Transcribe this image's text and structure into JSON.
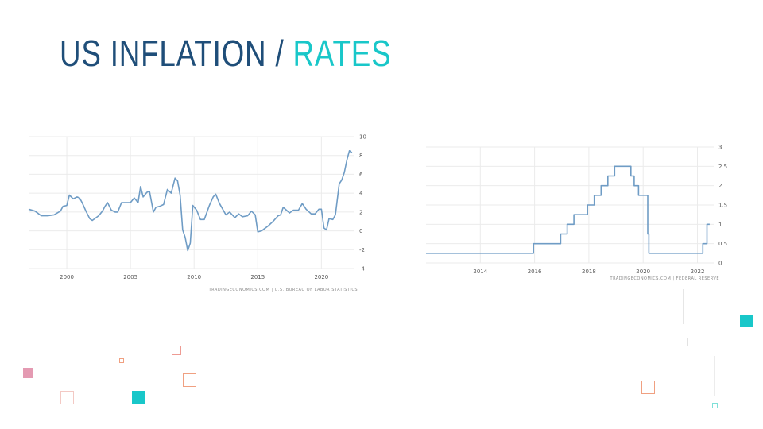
{
  "slide": {
    "title_part1": "US INFLATION",
    "title_sep": "/",
    "title_part2": "RATES"
  },
  "colors": {
    "title_dark": "#1f4e79",
    "title_accent": "#19c7c9",
    "line": "#6f9cc5",
    "grid": "#ebebeb",
    "tick_text": "#555555"
  },
  "chart_data": [
    {
      "type": "line",
      "source": "TRADINGECONOMICS.COM | U.S. BUREAU OF LABOR STATISTICS",
      "xlim": [
        1997.0,
        2022.6
      ],
      "ylim": [
        -4,
        10
      ],
      "x_ticks": [
        2000,
        2005,
        2010,
        2015,
        2020
      ],
      "y_ticks": [
        -4,
        -2,
        0,
        2,
        4,
        6,
        8,
        10
      ],
      "y_axis_side": "right",
      "grid": true,
      "series": [
        {
          "x": [
            1997.0,
            1997.5,
            1998.0,
            1998.5,
            1999.0,
            1999.5,
            1999.7,
            2000.0,
            2000.2,
            2000.5,
            2000.8,
            2001.0,
            2001.2,
            2001.5,
            2001.8,
            2002.0,
            2002.5,
            2002.8,
            2003.0,
            2003.2,
            2003.5,
            2003.8,
            2004.0,
            2004.3,
            2004.6,
            2005.0,
            2005.3,
            2005.6,
            2005.8,
            2006.0,
            2006.3,
            2006.5,
            2006.8,
            2007.0,
            2007.3,
            2007.6,
            2007.9,
            2008.2,
            2008.5,
            2008.7,
            2008.9,
            2009.1,
            2009.3,
            2009.5,
            2009.7,
            2009.9,
            2010.2,
            2010.5,
            2010.8,
            2011.2,
            2011.5,
            2011.7,
            2012.0,
            2012.5,
            2012.8,
            2013.2,
            2013.5,
            2013.8,
            2014.2,
            2014.5,
            2014.8,
            2015.0,
            2015.3,
            2015.5,
            2015.8,
            2016.2,
            2016.6,
            2016.8,
            2017.0,
            2017.5,
            2017.8,
            2018.2,
            2018.5,
            2018.8,
            2019.2,
            2019.5,
            2019.8,
            2020.0,
            2020.2,
            2020.4,
            2020.6,
            2020.9,
            2021.1,
            2021.4,
            2021.6,
            2021.8,
            2022.0,
            2022.2,
            2022.4
          ],
          "y": [
            2.3,
            2.1,
            1.6,
            1.6,
            1.7,
            2.1,
            2.6,
            2.7,
            3.8,
            3.4,
            3.6,
            3.5,
            3.0,
            2.1,
            1.3,
            1.1,
            1.6,
            2.1,
            2.6,
            3.0,
            2.2,
            2.0,
            2.0,
            3.0,
            3.0,
            3.0,
            3.5,
            3.0,
            4.7,
            3.6,
            4.1,
            4.2,
            2.0,
            2.5,
            2.6,
            2.8,
            4.4,
            4.0,
            5.6,
            5.3,
            3.8,
            0.1,
            -0.7,
            -2.1,
            -1.3,
            2.7,
            2.2,
            1.2,
            1.2,
            2.7,
            3.6,
            3.9,
            2.9,
            1.7,
            2.0,
            1.4,
            1.8,
            1.5,
            1.6,
            2.1,
            1.7,
            -0.1,
            0.0,
            0.2,
            0.5,
            1.0,
            1.6,
            1.7,
            2.5,
            1.9,
            2.2,
            2.2,
            2.9,
            2.3,
            1.8,
            1.8,
            2.3,
            2.3,
            0.3,
            0.1,
            1.3,
            1.2,
            1.7,
            5.0,
            5.4,
            6.2,
            7.5,
            8.5,
            8.3
          ]
        }
      ]
    },
    {
      "type": "line",
      "source": "TRADINGECONOMICS.COM | FEDERAL RESERVE",
      "xlim": [
        2012.0,
        2022.6
      ],
      "ylim": [
        0,
        3
      ],
      "x_ticks": [
        2014,
        2016,
        2018,
        2020,
        2022
      ],
      "y_ticks": [
        0,
        0.5,
        1,
        1.5,
        2,
        2.5,
        3
      ],
      "y_axis_side": "right",
      "grid": true,
      "series": [
        {
          "x": [
            2012.0,
            2015.96,
            2015.96,
            2016.96,
            2016.96,
            2017.2,
            2017.2,
            2017.45,
            2017.45,
            2017.95,
            2017.95,
            2018.2,
            2018.2,
            2018.45,
            2018.45,
            2018.7,
            2018.7,
            2018.95,
            2018.95,
            2019.55,
            2019.55,
            2019.67,
            2019.67,
            2019.83,
            2019.83,
            2020.17,
            2020.17,
            2020.21,
            2020.21,
            2022.2,
            2022.2,
            2022.35,
            2022.35,
            2022.45
          ],
          "y": [
            0.25,
            0.25,
            0.5,
            0.5,
            0.75,
            0.75,
            1.0,
            1.0,
            1.25,
            1.25,
            1.5,
            1.5,
            1.75,
            1.75,
            2.0,
            2.0,
            2.25,
            2.25,
            2.5,
            2.5,
            2.25,
            2.25,
            2.0,
            2.0,
            1.75,
            1.75,
            0.75,
            0.75,
            0.25,
            0.25,
            0.5,
            0.5,
            1.0,
            1.0
          ]
        }
      ]
    }
  ]
}
